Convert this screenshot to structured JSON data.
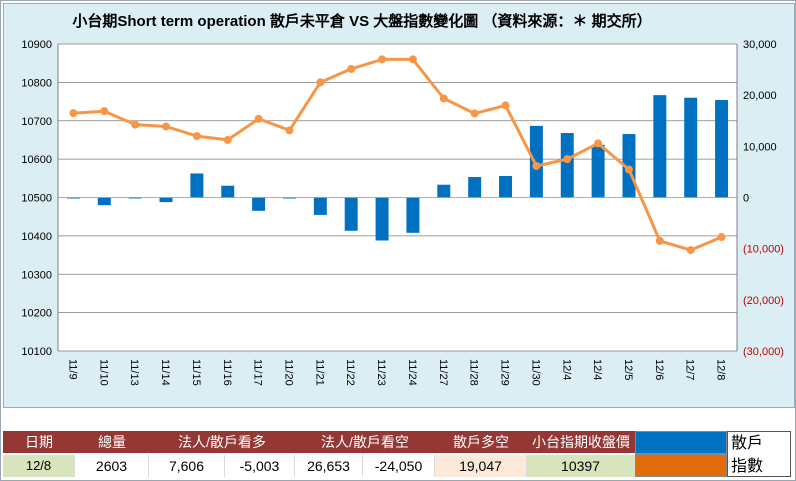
{
  "title": "小台期Short term operation 散戶未平倉 VS 大盤指數變化圖 （資料來源：＊ 期交所）",
  "colors": {
    "bar": "#0070c0",
    "line": "#f79646",
    "negative_axis": "#c00000",
    "background": "#daeef3",
    "header": "#953735",
    "cell_green": "#d8e4bc",
    "cell_pink": "#fde9d9"
  },
  "chart_data": {
    "type": "bar+line",
    "categories": [
      "11/9",
      "11/10",
      "11/13",
      "11/14",
      "11/15",
      "11/16",
      "11/17",
      "11/20",
      "11/21",
      "11/22",
      "11/23",
      "11/24",
      "11/27",
      "11/28",
      "11/29",
      "11/30",
      "12/4",
      "12/4",
      "12/5",
      "12/6",
      "12/7",
      "12/8"
    ],
    "series": [
      {
        "name": "散戶",
        "type": "bar",
        "axis": "right",
        "values": [
          -100,
          -1500,
          -100,
          -900,
          4700,
          2300,
          -2600,
          -100,
          -3400,
          -6500,
          -8400,
          -6900,
          2500,
          4000,
          4200,
          14000,
          12600,
          10300,
          12400,
          20000,
          19500,
          19047
        ]
      },
      {
        "name": "指數",
        "type": "line",
        "axis": "left",
        "values": [
          10720,
          10725,
          10690,
          10685,
          10660,
          10650,
          10705,
          10675,
          10800,
          10835,
          10860,
          10860,
          10758,
          10719,
          10740,
          10582,
          10600,
          10641,
          10573,
          10387,
          10363,
          10397
        ]
      }
    ],
    "y_left": {
      "min": 10100,
      "max": 10900,
      "ticks": [
        "10100",
        "10200",
        "10300",
        "10400",
        "10500",
        "10600",
        "10700",
        "10800",
        "10900"
      ]
    },
    "y_right": {
      "min": -30000,
      "max": 30000,
      "ticks": [
        "(30,000)",
        "(20,000)",
        "(10,000)",
        "0",
        "10,000",
        "20,000",
        "30,000"
      ]
    },
    "gridlines": "horizontal",
    "legend_placement": "bottom-right"
  },
  "table": {
    "headers": [
      "日期",
      "總量",
      "法人/散戶看多",
      "法人/散戶看空",
      "散戶多空",
      "小台指期收盤價"
    ],
    "row": {
      "date": "12/8",
      "total": "2603",
      "long_inst": "7,606",
      "long_retail": "-5,003",
      "short_inst": "26,653",
      "short_retail": "-24,050",
      "retail_net": "19,047",
      "close": "10397"
    }
  },
  "legend": [
    {
      "label": "散戶",
      "color": "#0070c0"
    },
    {
      "label": "指數",
      "color": "#e26b0a"
    }
  ]
}
